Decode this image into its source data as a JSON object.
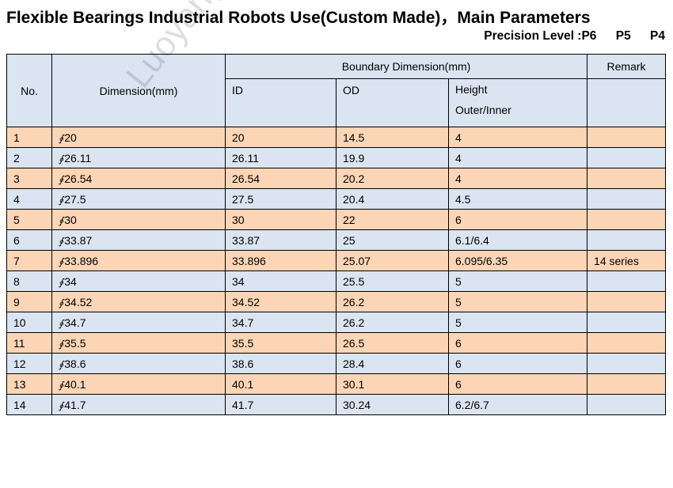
{
  "title": "Flexible Bearings Industrial Robots Use(Custom Made)，Main Parameters",
  "precision": {
    "label": "Precision Level :P6",
    "p5": "P5",
    "p4": "P4"
  },
  "watermark": "Luoyang Yadian",
  "table": {
    "headers": {
      "no": "No.",
      "dimension": "Dimension(mm)",
      "boundary": "Boundary Dimension(mm)",
      "remark": "Remark",
      "id": "ID",
      "od": "OD",
      "height_line1": "Height",
      "height_line2": "Outer/Inner"
    },
    "symbol": "∮",
    "rows": [
      {
        "no": "1",
        "dim": "20",
        "id": "20",
        "od": "14.5",
        "height": "4",
        "remark": ""
      },
      {
        "no": "2",
        "dim": "26.11",
        "id": "26.11",
        "od": "19.9",
        "height": "4",
        "remark": ""
      },
      {
        "no": "3",
        "dim": "26.54",
        "id": "26.54",
        "od": "20.2",
        "height": "4",
        "remark": ""
      },
      {
        "no": "4",
        "dim": "27.5",
        "id": "27.5",
        "od": "20.4",
        "height": "4.5",
        "remark": ""
      },
      {
        "no": "5",
        "dim": "30",
        "id": "30",
        "od": "22",
        "height": "6",
        "remark": ""
      },
      {
        "no": "6",
        "dim": "33.87",
        "id": "33.87",
        "od": "25",
        "height": "6.1/6.4",
        "remark": ""
      },
      {
        "no": "7",
        "dim": "33.896",
        "id": "33.896",
        "od": "25.07",
        "height": "6.095/6.35",
        "remark": "14 series"
      },
      {
        "no": "8",
        "dim": "34",
        "id": "34",
        "od": "25.5",
        "height": "5",
        "remark": ""
      },
      {
        "no": "9",
        "dim": "34.52",
        "id": "34.52",
        "od": "26.2",
        "height": "5",
        "remark": ""
      },
      {
        "no": "10",
        "dim": "34.7",
        "id": "34.7",
        "od": "26.2",
        "height": "5",
        "remark": ""
      },
      {
        "no": "11",
        "dim": "35.5",
        "id": "35.5",
        "od": "26.5",
        "height": "6",
        "remark": ""
      },
      {
        "no": "12",
        "dim": "38.6",
        "id": "38.6",
        "od": "28.4",
        "height": "6",
        "remark": ""
      },
      {
        "no": "13",
        "dim": "40.1",
        "id": "40.1",
        "od": "30.1",
        "height": "6",
        "remark": ""
      },
      {
        "no": "14",
        "dim": "41.7",
        "id": "41.7",
        "od": "30.24",
        "height": "6.2/6.7",
        "remark": ""
      }
    ]
  }
}
